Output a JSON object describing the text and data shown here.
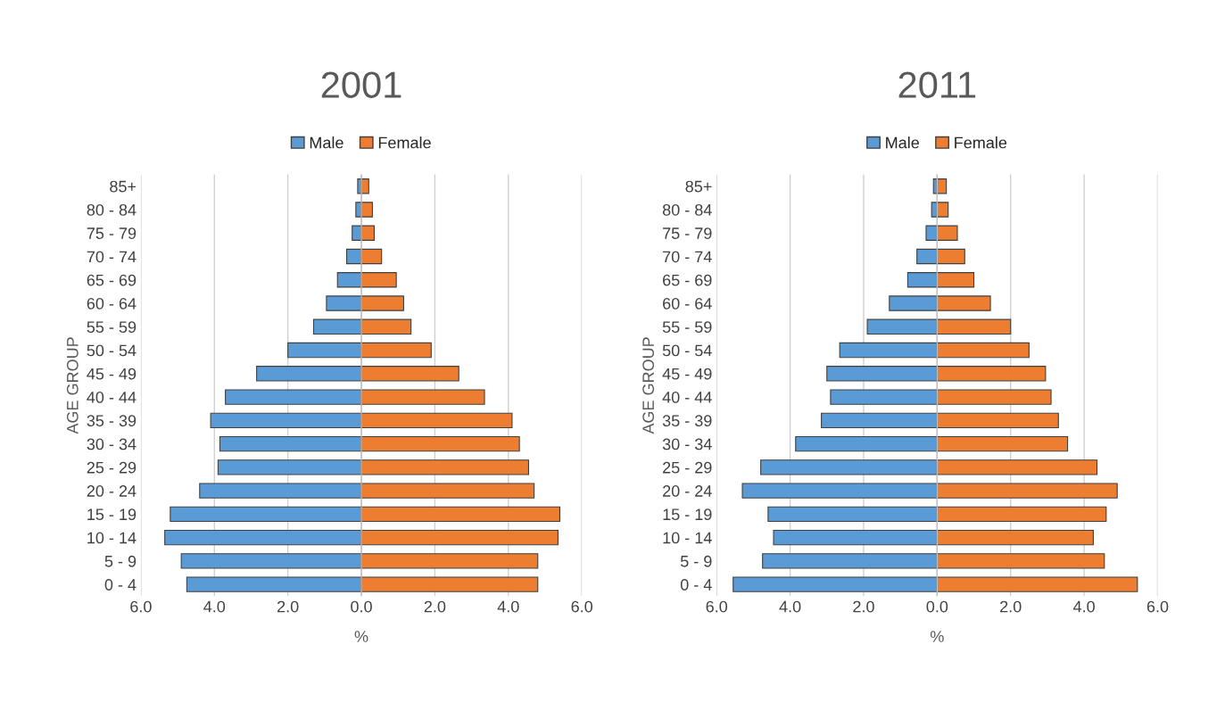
{
  "chart_data": [
    {
      "type": "bar",
      "title": "2001",
      "xlabel": "%",
      "ylabel": "AGE GROUP",
      "orientation": "horizontal",
      "stacked": true,
      "legend": "top",
      "grid": "x",
      "categories": [
        "85+",
        "80 - 84",
        "75 - 79",
        "70 - 74",
        "65 - 69",
        "60 - 64",
        "55 - 59",
        "50 - 54",
        "45 - 49",
        "40 - 44",
        "35 - 39",
        "30 - 34",
        "25 - 29",
        "20 - 24",
        "15 - 19",
        "10 - 14",
        "5 - 9",
        "0 - 4"
      ],
      "series": [
        {
          "name": "Male",
          "color": "#5b9bd5",
          "values": [
            -0.1,
            -0.15,
            -0.25,
            -0.4,
            -0.65,
            -0.95,
            -1.3,
            -2.0,
            -2.85,
            -3.7,
            -4.1,
            -3.85,
            -3.9,
            -4.4,
            -5.2,
            -5.35,
            -4.9,
            -4.75
          ]
        },
        {
          "name": "Female",
          "color": "#ed7d31",
          "values": [
            0.2,
            0.3,
            0.35,
            0.55,
            0.95,
            1.15,
            1.35,
            1.9,
            2.65,
            3.35,
            4.1,
            4.3,
            4.55,
            4.7,
            5.4,
            5.35,
            4.8,
            4.8
          ]
        }
      ],
      "xlim": [
        -6,
        6
      ],
      "xticks": [
        {
          "value": -6,
          "label": "6.0"
        },
        {
          "value": -4,
          "label": "4.0"
        },
        {
          "value": -2,
          "label": "2.0"
        },
        {
          "value": 0,
          "label": "0.0"
        },
        {
          "value": 2,
          "label": "2.0"
        },
        {
          "value": 4,
          "label": "4.0"
        },
        {
          "value": 6,
          "label": "6.0"
        }
      ]
    },
    {
      "type": "bar",
      "title": "2011",
      "xlabel": "%",
      "ylabel": "AGE GROUP",
      "orientation": "horizontal",
      "stacked": true,
      "legend": "top",
      "grid": "x",
      "categories": [
        "85+",
        "80 - 84",
        "75 - 79",
        "70 - 74",
        "65 - 69",
        "60 - 64",
        "55 - 59",
        "50 - 54",
        "45 - 49",
        "40 - 44",
        "35 - 39",
        "30 - 34",
        "25 - 29",
        "20 - 24",
        "15 - 19",
        "10 - 14",
        "5 - 9",
        "0 - 4"
      ],
      "series": [
        {
          "name": "Male",
          "color": "#5b9bd5",
          "values": [
            -0.1,
            -0.15,
            -0.3,
            -0.55,
            -0.8,
            -1.3,
            -1.9,
            -2.65,
            -3.0,
            -2.9,
            -3.15,
            -3.85,
            -4.8,
            -5.3,
            -4.6,
            -4.45,
            -4.75,
            -5.55
          ]
        },
        {
          "name": "Female",
          "color": "#ed7d31",
          "values": [
            0.25,
            0.3,
            0.55,
            0.75,
            1.0,
            1.45,
            2.0,
            2.5,
            2.95,
            3.1,
            3.3,
            3.55,
            4.35,
            4.9,
            4.6,
            4.25,
            4.55,
            5.45
          ]
        }
      ],
      "xlim": [
        -6,
        6
      ],
      "xticks": [
        {
          "value": -6,
          "label": "6.0"
        },
        {
          "value": -4,
          "label": "4.0"
        },
        {
          "value": -2,
          "label": "2.0"
        },
        {
          "value": 0,
          "label": "0.0"
        },
        {
          "value": 2,
          "label": "2.0"
        },
        {
          "value": 4,
          "label": "4.0"
        },
        {
          "value": 6,
          "label": "6.0"
        }
      ]
    }
  ]
}
